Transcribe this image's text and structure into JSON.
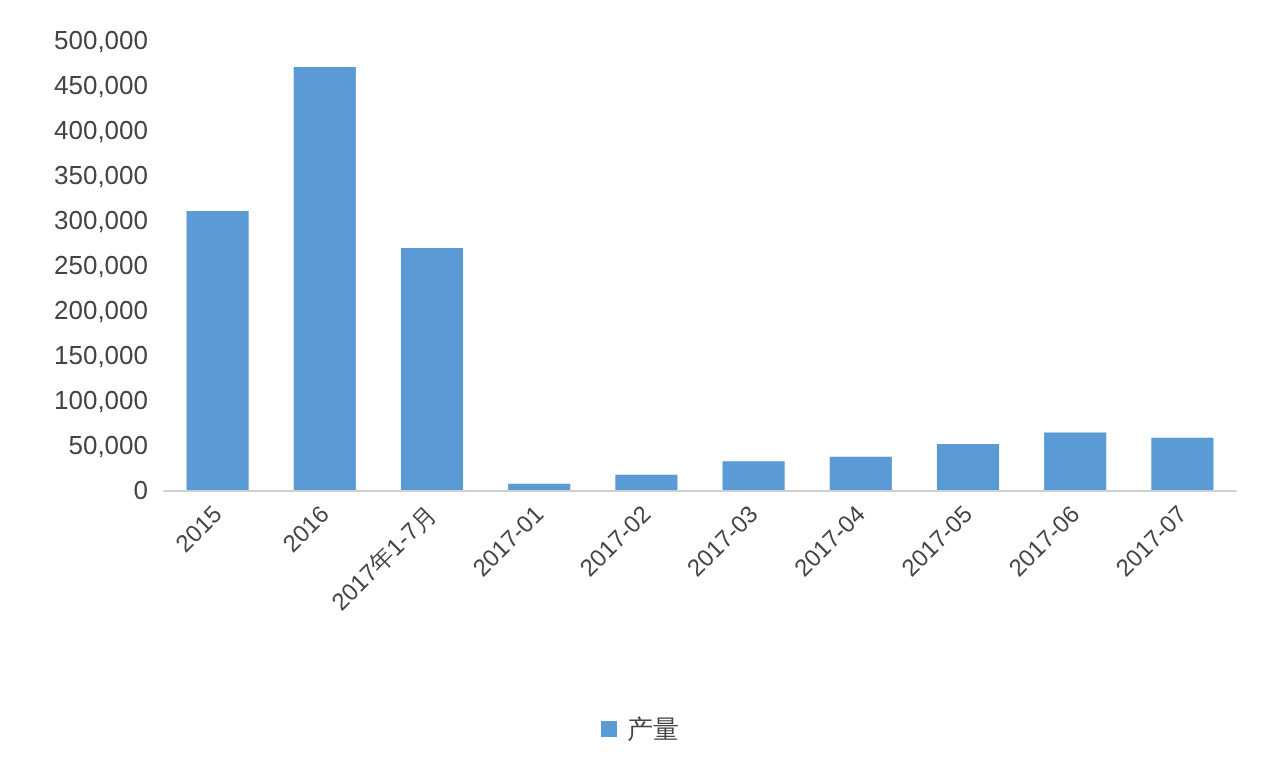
{
  "chart_data": {
    "type": "bar",
    "categories": [
      "2015",
      "2016",
      "2017年1-7月",
      "2017-01",
      "2017-02",
      "2017-03",
      "2017-04",
      "2017-05",
      "2017-06",
      "2017-07"
    ],
    "series": [
      {
        "name": "产量",
        "color": "#5b9bd5",
        "values": [
          310000,
          470000,
          269000,
          7000,
          17000,
          32000,
          37000,
          51000,
          64000,
          58000
        ]
      }
    ],
    "ylim": [
      0,
      500000
    ],
    "yticks": [
      0,
      {
        "value": 50000,
        "label": "50,000"
      },
      {
        "value": 100000,
        "label": "100,000"
      },
      {
        "value": 150000,
        "label": "150,000"
      },
      {
        "value": 200000,
        "label": "200,000"
      },
      {
        "value": 250000,
        "label": "250,000"
      },
      {
        "value": 300000,
        "label": "300,000"
      },
      {
        "value": 350000,
        "label": "350,000"
      },
      {
        "value": 400000,
        "label": "400,000"
      },
      {
        "value": 450000,
        "label": "450,000"
      },
      {
        "value": 500000,
        "label": "500,000"
      }
    ],
    "grid": false,
    "legend": "bottom"
  }
}
